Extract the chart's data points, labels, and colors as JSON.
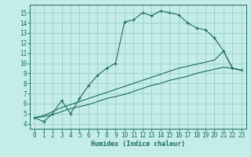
{
  "xlabel": "Humidex (Indice chaleur)",
  "xlim": [
    -0.5,
    23.5
  ],
  "ylim": [
    3.5,
    15.8
  ],
  "xticks": [
    0,
    1,
    2,
    3,
    4,
    5,
    6,
    7,
    8,
    9,
    10,
    11,
    12,
    13,
    14,
    15,
    16,
    17,
    18,
    19,
    20,
    21,
    22,
    23
  ],
  "yticks": [
    4,
    5,
    6,
    7,
    8,
    9,
    10,
    11,
    12,
    13,
    14,
    15
  ],
  "bg_color": "#c5ede7",
  "line_color": "#1a6b5e",
  "grid_color": "#9fd4cc",
  "line1_x": [
    0,
    1,
    2,
    3,
    4,
    5,
    6,
    7,
    8,
    9,
    10,
    11,
    12,
    13,
    14,
    15,
    16,
    17,
    18,
    19,
    20,
    21,
    22,
    23
  ],
  "line1_y": [
    4.6,
    4.2,
    5.0,
    6.3,
    5.0,
    6.5,
    7.8,
    8.8,
    9.5,
    10.0,
    14.1,
    14.3,
    15.0,
    14.7,
    15.2,
    15.0,
    14.8,
    14.0,
    13.5,
    13.3,
    12.5,
    11.2,
    9.5,
    9.3
  ],
  "line2_x": [
    0,
    1,
    2,
    3,
    4,
    5,
    6,
    7,
    8,
    9,
    10,
    11,
    12,
    13,
    14,
    15,
    16,
    17,
    18,
    19,
    20,
    21,
    22,
    23
  ],
  "line2_y": [
    4.6,
    4.8,
    5.2,
    5.6,
    5.9,
    6.2,
    6.5,
    6.8,
    7.1,
    7.4,
    7.7,
    8.0,
    8.3,
    8.6,
    8.9,
    9.2,
    9.5,
    9.7,
    9.9,
    10.1,
    10.3,
    11.2,
    9.5,
    9.3
  ],
  "line3_x": [
    0,
    1,
    2,
    3,
    4,
    5,
    6,
    7,
    8,
    9,
    10,
    11,
    12,
    13,
    14,
    15,
    16,
    17,
    18,
    19,
    20,
    21,
    22,
    23
  ],
  "line3_y": [
    4.6,
    4.7,
    4.9,
    5.2,
    5.5,
    5.7,
    5.9,
    6.2,
    6.5,
    6.7,
    6.9,
    7.2,
    7.5,
    7.8,
    8.0,
    8.3,
    8.5,
    8.7,
    9.0,
    9.2,
    9.4,
    9.6,
    9.5,
    9.3
  ],
  "tick_fontsize": 5.5,
  "xlabel_fontsize": 6.0
}
